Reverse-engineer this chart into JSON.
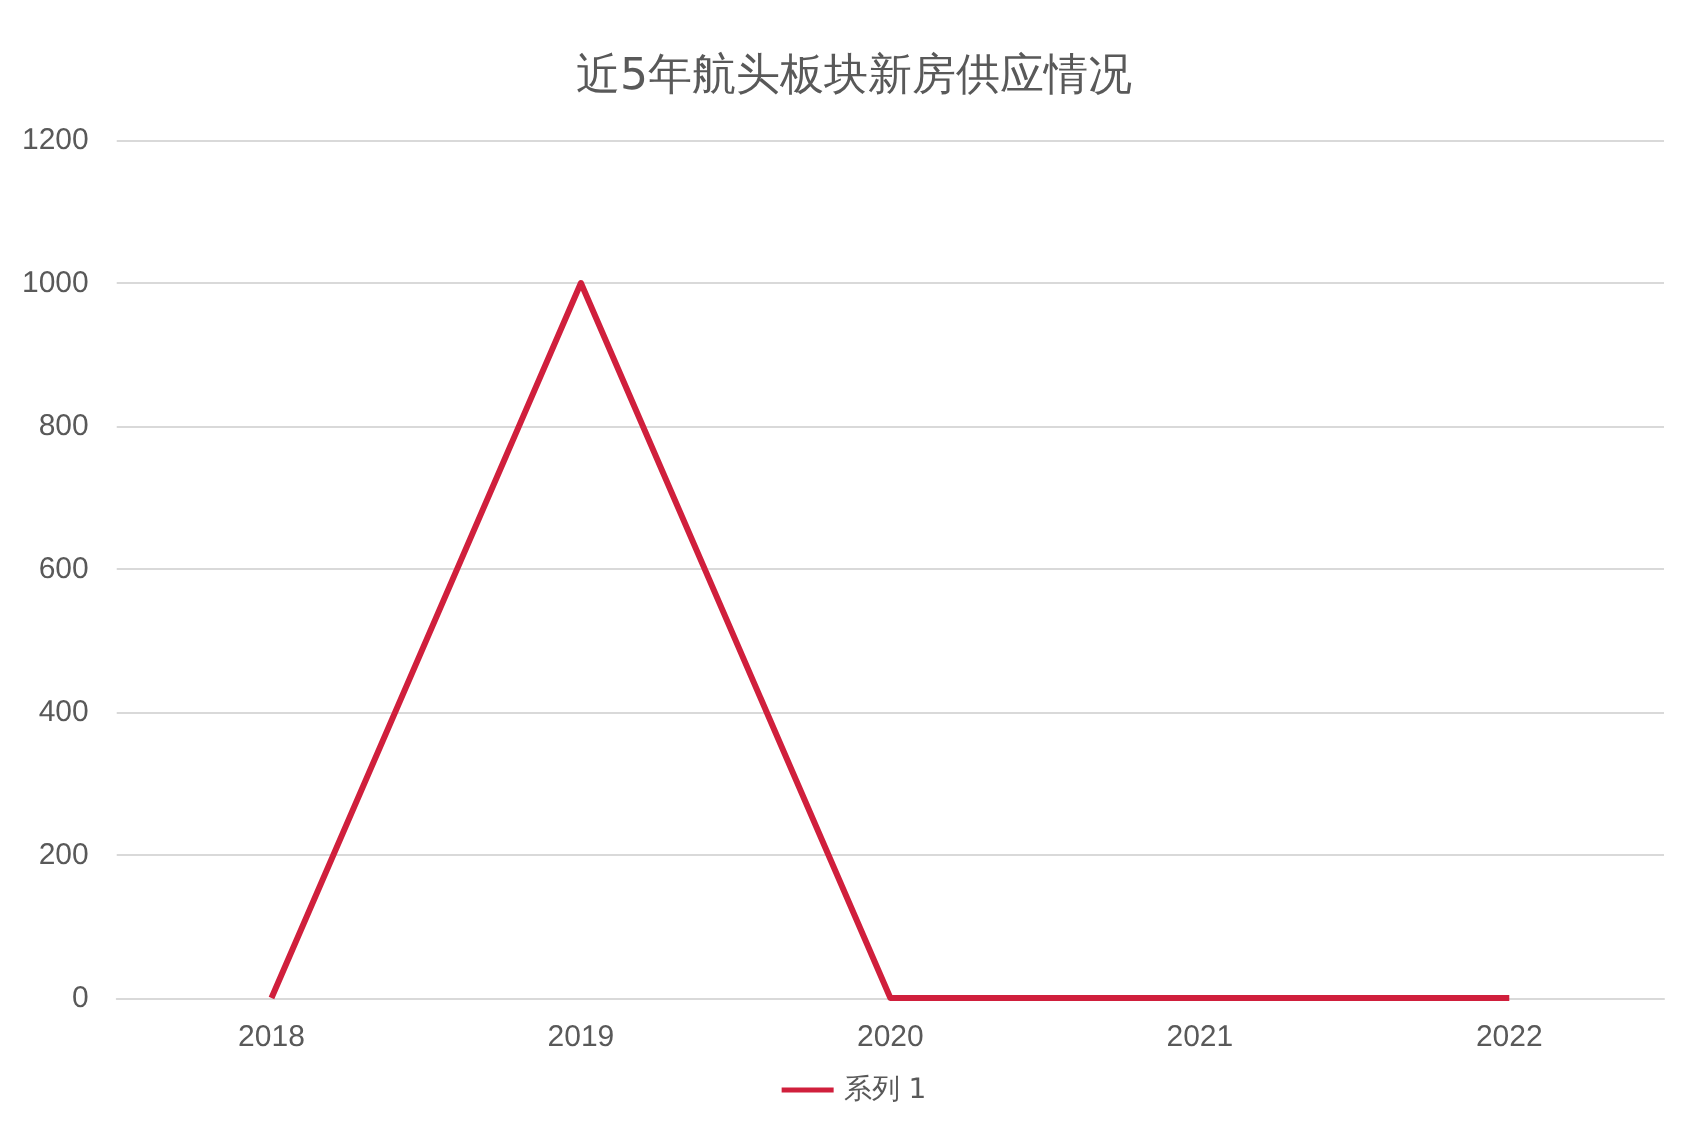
{
  "chart_data": {
    "type": "line",
    "title": "近5年航头板块新房供应情况",
    "categories": [
      "2018",
      "2019",
      "2020",
      "2021",
      "2022"
    ],
    "series": [
      {
        "name": "系列 1",
        "color": "#d01f3c",
        "values": [
          0,
          1000,
          0,
          0,
          0
        ]
      }
    ],
    "ylim": [
      0,
      1200
    ],
    "yticks": [
      0,
      200,
      400,
      600,
      800,
      1000,
      1200
    ],
    "grid": "y",
    "legend": "bottom"
  }
}
